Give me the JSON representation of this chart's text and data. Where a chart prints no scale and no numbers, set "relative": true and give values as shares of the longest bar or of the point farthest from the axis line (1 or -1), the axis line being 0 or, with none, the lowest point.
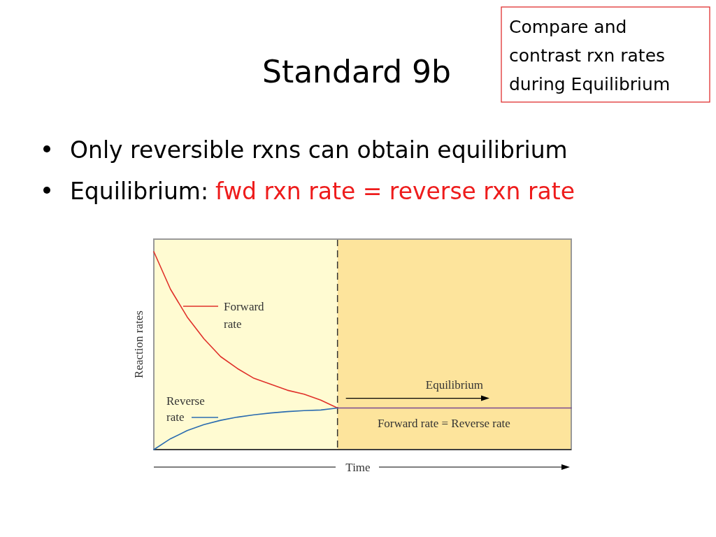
{
  "chart_data": {
    "type": "line",
    "title": "Standard 9b",
    "xlabel": "Time",
    "ylabel": "Reaction rates",
    "relative": true,
    "line_style": "solid",
    "categories": [
      null,
      null,
      null,
      null,
      null,
      null,
      null,
      null,
      null,
      null,
      null,
      null,
      null,
      null,
      null,
      null,
      null,
      null,
      null,
      null,
      null,
      null,
      null,
      null,
      null,
      null
    ],
    "annotations": [
      "Compare and contrast rxn rates during Equilibrium",
      "Only reversible rxns can obtain equilibrium",
      "Equilibrium:",
      "fwd rxn rate = reverse rxn rate",
      "Equilibrium",
      "Forward rate = Reverse rate"
    ],
    "series": [
      {
        "name": "Forward rate",
        "color": "#e0312a",
        "values": [
          1,
          0.81,
          0.67,
          0.56,
          0.47,
          0.41,
          0.36,
          0.33,
          0.3,
          0.28,
          0.25,
          0.21,
          null,
          null,
          null,
          null,
          null,
          null,
          null,
          null,
          null,
          null,
          null,
          null,
          null,
          null
        ]
      },
      {
        "name": "Reverse rate",
        "color": "#2b6cb0",
        "values": [
          0,
          0.055,
          0.096,
          0.126,
          0.148,
          0.164,
          0.176,
          0.185,
          0.192,
          0.197,
          0.2,
          0.21,
          null,
          null,
          null,
          null,
          null,
          null,
          null,
          null,
          null,
          null,
          null,
          null,
          null,
          null
        ]
      },
      {
        "color": "#7a4a90",
        "values": [
          null,
          null,
          null,
          null,
          null,
          null,
          null,
          null,
          null,
          null,
          null,
          0.21,
          0.21,
          0.21,
          0.21,
          0.21,
          0.21,
          0.21,
          0.21,
          0.21,
          0.21,
          0.21,
          0.21,
          0.21,
          0.21,
          0.21
        ]
      }
    ]
  }
}
